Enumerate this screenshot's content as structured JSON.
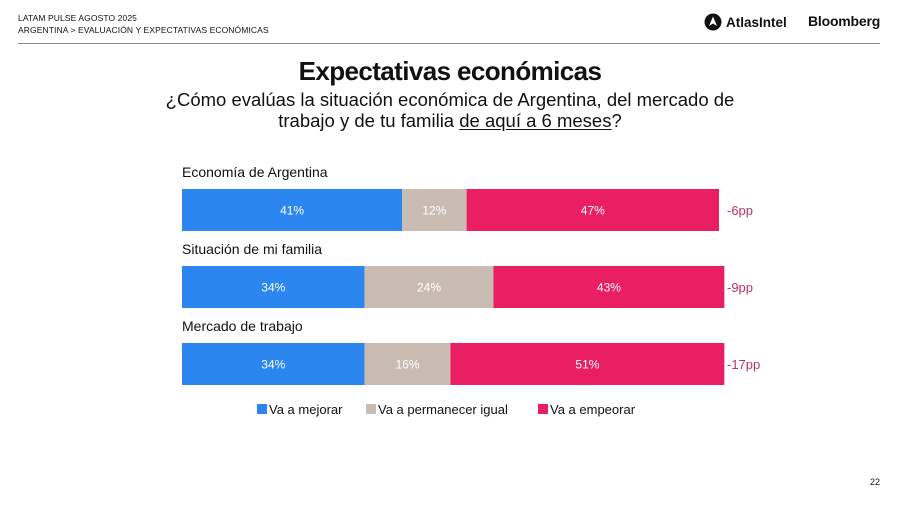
{
  "header": {
    "line1": "LATAM PULSE AGOSTO 2025",
    "line2": "ARGENTINA > EVALUACIÓN Y EXPECTATIVAS ECONÓMICAS",
    "logo1": "AtlasIntel",
    "logo2": "Bloomberg"
  },
  "title": "Expectativas económicas",
  "subtitle": {
    "part1": "¿Cómo evalúas la situación económica de Argentina, del mercado de trabajo y de tu familia ",
    "underlined": "de aquí a 6 meses",
    "part2": "?"
  },
  "page_number": "22",
  "colors": {
    "mejorar": "#2b86f0",
    "igual": "#c9bcb3",
    "empeorar": "#ea1e62",
    "net": "#c0305a"
  },
  "chart_data": {
    "type": "bar",
    "orientation": "horizontal-stacked-100",
    "categories": [
      "Economía de Argentina",
      "Situación de mi familia",
      "Mercado de trabajo"
    ],
    "series": [
      {
        "name": "Va a mejorar",
        "key": "mejorar",
        "values": [
          41,
          34,
          34
        ]
      },
      {
        "name": "Va a permanecer igual",
        "key": "igual",
        "values": [
          12,
          24,
          16
        ]
      },
      {
        "name": "Va a empeorar",
        "key": "empeorar",
        "values": [
          47,
          43,
          51
        ]
      }
    ],
    "net_labels": [
      "-6pp",
      "-9pp",
      "-17pp"
    ],
    "value_suffix": "%",
    "legend_position": "bottom",
    "xlim": [
      0,
      100
    ]
  }
}
